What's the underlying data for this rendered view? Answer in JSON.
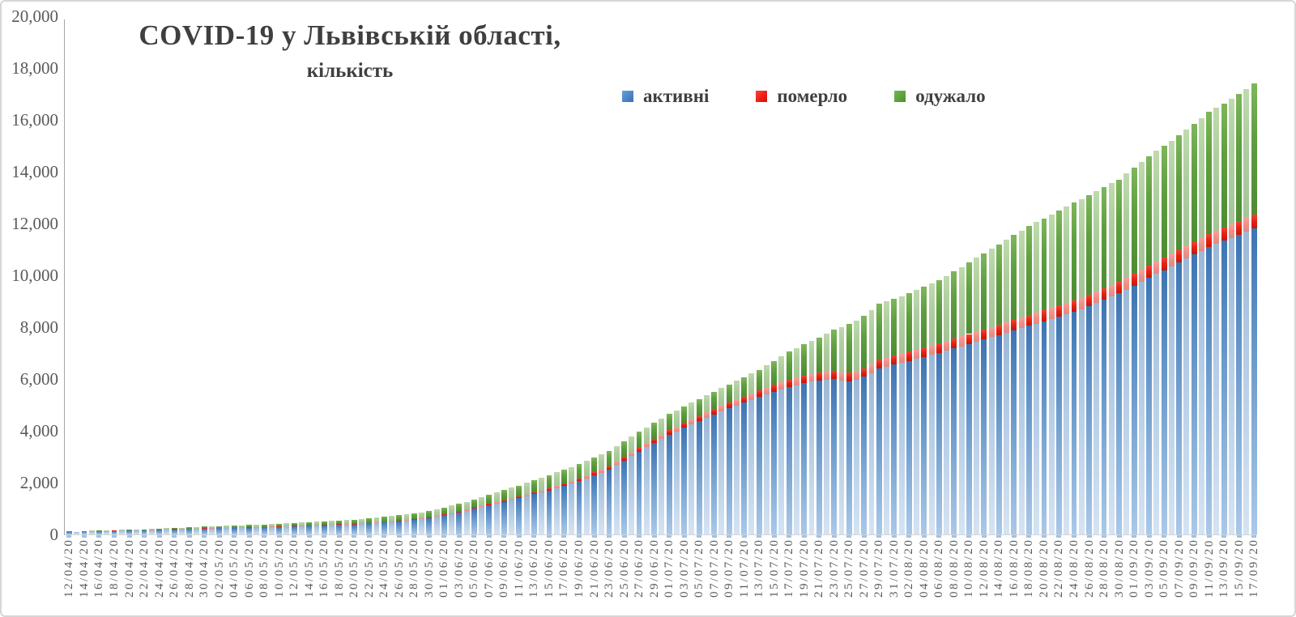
{
  "title": "COVID-19 у Львівській області,",
  "subtitle": "кількість",
  "legend": [
    {
      "label": "активні",
      "color": "#4a86c6"
    },
    {
      "label": "померло",
      "color": "#ed1c16"
    },
    {
      "label": "одужало",
      "color": "#58a339"
    }
  ],
  "y_axis": {
    "ticks": [
      "20,000",
      "18,000",
      "16,000",
      "14,000",
      "12,000",
      "10,000",
      "8,000",
      "6,000",
      "4,000",
      "2,000",
      "0"
    ],
    "max": 20000,
    "min": 0,
    "step": 2000
  },
  "chart_data": {
    "type": "bar",
    "stacked": true,
    "title": "COVID-19 у Львівській області, кількість",
    "gridlines": "none",
    "legend_position": "top-inside",
    "ylim": [
      0,
      20000
    ],
    "y_step": 2000,
    "n_bars": 159,
    "bar_period": "daily",
    "x_label_every": 2,
    "x_labels": [
      "12/04/20",
      "14/04/20",
      "16/04/20",
      "18/04/20",
      "20/04/20",
      "22/04/20",
      "24/04/20",
      "26/04/20",
      "28/04/20",
      "30/04/20",
      "02/05/20",
      "04/05/20",
      "06/05/20",
      "08/05/20",
      "10/05/20",
      "12/05/20",
      "14/05/20",
      "16/05/20",
      "18/05/20",
      "20/05/20",
      "22/05/20",
      "24/05/20",
      "26/05/20",
      "28/05/20",
      "30/05/20",
      "01/06/20",
      "03/06/20",
      "05/06/20",
      "07/06/20",
      "09/06/20",
      "11/06/20",
      "13/06/20",
      "15/06/20",
      "17/06/20",
      "19/06/20",
      "21/06/20",
      "23/06/20",
      "25/06/20",
      "27/06/20",
      "29/06/20",
      "01/07/20",
      "03/07/20",
      "05/07/20",
      "07/07/20",
      "09/07/20",
      "11/07/20",
      "13/07/20",
      "15/07/20",
      "17/07/20",
      "19/07/20",
      "21/07/20",
      "23/07/20",
      "25/07/20",
      "27/07/20",
      "29/07/20",
      "31/07/20",
      "02/08/20",
      "04/08/20",
      "06/08/20",
      "08/08/20",
      "10/08/20",
      "12/08/20",
      "14/08/20",
      "16/08/20",
      "18/08/20",
      "20/08/20",
      "22/08/20",
      "24/08/20",
      "26/08/20",
      "28/08/20",
      "30/08/20",
      "01/09/20",
      "03/09/20",
      "05/09/20",
      "07/09/20",
      "09/09/20",
      "11/09/20",
      "13/09/20",
      "15/09/20",
      "17/09/20"
    ],
    "series": [
      {
        "name": "активні",
        "color": "#4a86c6",
        "values": [
          100,
          106,
          112,
          118,
          124,
          130,
          136,
          142,
          148,
          154,
          160,
          168,
          176,
          184,
          193,
          201,
          209,
          217,
          225,
          231,
          236,
          242,
          248,
          253,
          259,
          264,
          270,
          280,
          290,
          300,
          310,
          320,
          330,
          340,
          350,
          360,
          370,
          380,
          390,
          407,
          423,
          440,
          457,
          473,
          490,
          523,
          555,
          588,
          620,
          678,
          735,
          793,
          850,
          920,
          990,
          1060,
          1130,
          1198,
          1265,
          1333,
          1400,
          1475,
          1550,
          1625,
          1700,
          1788,
          1875,
          1963,
          2050,
          2163,
          2275,
          2388,
          2500,
          2675,
          2850,
          3025,
          3200,
          3363,
          3525,
          3688,
          3850,
          3983,
          4115,
          4248,
          4380,
          4503,
          4625,
          4748,
          4870,
          4978,
          5085,
          5193,
          5300,
          5400,
          5500,
          5600,
          5700,
          5760,
          5830,
          5900,
          5950,
          5970,
          5990,
          5940,
          5920,
          5980,
          6080,
          6230,
          6400,
          6475,
          6550,
          6625,
          6700,
          6775,
          6850,
          6925,
          7000,
          7088,
          7175,
          7263,
          7350,
          7438,
          7525,
          7613,
          7700,
          7788,
          7875,
          7963,
          8050,
          8138,
          8225,
          8313,
          8400,
          8500,
          8600,
          8700,
          8800,
          8925,
          9050,
          9175,
          9300,
          9450,
          9600,
          9750,
          9900,
          10050,
          10200,
          10350,
          10500,
          10650,
          10800,
          10950,
          11100,
          11217,
          11333,
          11450,
          11570,
          11690,
          11810
        ]
      },
      {
        "name": "померло",
        "color": "#ed1c16",
        "values": [
          4,
          4,
          5,
          5,
          6,
          7,
          7,
          8,
          8,
          9,
          9,
          10,
          10,
          11,
          12,
          12,
          13,
          13,
          14,
          15,
          15,
          16,
          17,
          17,
          18,
          18,
          19,
          19,
          20,
          20,
          21,
          21,
          22,
          22,
          23,
          23,
          24,
          24,
          25,
          25,
          26,
          26,
          27,
          27,
          28,
          29,
          30,
          30,
          31,
          32,
          33,
          35,
          36,
          38,
          40,
          42,
          44,
          48,
          51,
          54,
          58,
          63,
          68,
          73,
          78,
          85,
          92,
          98,
          105,
          111,
          117,
          122,
          128,
          134,
          139,
          145,
          150,
          155,
          160,
          165,
          170,
          176,
          183,
          189,
          195,
          203,
          210,
          218,
          225,
          233,
          240,
          248,
          255,
          261,
          268,
          274,
          280,
          285,
          290,
          295,
          300,
          305,
          309,
          314,
          318,
          322,
          327,
          331,
          335,
          339,
          344,
          348,
          352,
          356,
          360,
          364,
          368,
          372,
          377,
          381,
          385,
          389,
          393,
          396,
          400,
          404,
          408,
          411,
          415,
          419,
          423,
          426,
          430,
          434,
          437,
          441,
          444,
          448,
          451,
          455,
          458,
          462,
          465,
          469,
          472,
          476,
          480,
          483,
          487,
          490,
          494,
          497,
          500,
          503,
          507,
          510,
          514,
          518,
          522
        ]
      },
      {
        "name": "одужало",
        "color": "#58a339",
        "values": [
          12,
          14,
          16,
          18,
          20,
          22,
          23,
          25,
          27,
          29,
          31,
          35,
          39,
          42,
          46,
          50,
          54,
          57,
          61,
          65,
          69,
          72,
          76,
          80,
          84,
          87,
          91,
          96,
          100,
          105,
          109,
          114,
          118,
          124,
          130,
          137,
          143,
          149,
          155,
          166,
          177,
          189,
          200,
          211,
          222,
          229,
          236,
          242,
          249,
          260,
          272,
          283,
          294,
          307,
          320,
          333,
          346,
          368,
          389,
          411,
          432,
          452,
          472,
          492,
          512,
          524,
          536,
          548,
          560,
          568,
          575,
          583,
          590,
          595,
          600,
          605,
          610,
          614,
          618,
          621,
          625,
          631,
          638,
          644,
          650,
          663,
          675,
          688,
          700,
          724,
          748,
          771,
          795,
          864,
          933,
          1001,
          1070,
          1140,
          1210,
          1280,
          1350,
          1483,
          1615,
          1748,
          1880,
          1951,
          2023,
          2094,
          2165,
          2186,
          2207,
          2227,
          2248,
          2294,
          2340,
          2386,
          2432,
          2515,
          2598,
          2682,
          2765,
          2849,
          2933,
          3016,
          3100,
          3184,
          3268,
          3351,
          3435,
          3494,
          3553,
          3611,
          3670,
          3717,
          3763,
          3810,
          3856,
          3878,
          3899,
          3921,
          3942,
          4014,
          4085,
          4157,
          4228,
          4274,
          4320,
          4367,
          4413,
          4485,
          4557,
          4628,
          4700,
          4747,
          4793,
          4840,
          4916,
          4992,
          5068
        ]
      }
    ]
  }
}
